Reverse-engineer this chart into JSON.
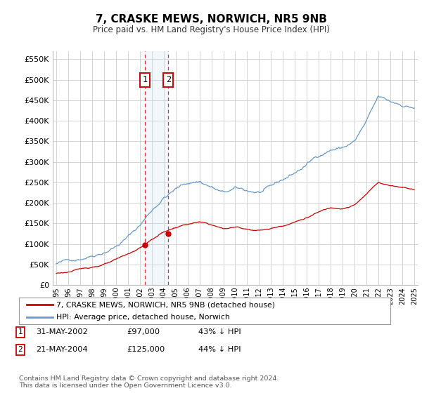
{
  "title": "7, CRASKE MEWS, NORWICH, NR5 9NB",
  "subtitle": "Price paid vs. HM Land Registry's House Price Index (HPI)",
  "ylabel_ticks": [
    0,
    50000,
    100000,
    150000,
    200000,
    250000,
    300000,
    350000,
    400000,
    450000,
    500000,
    550000
  ],
  "ylabel_labels": [
    "£0",
    "£50K",
    "£100K",
    "£150K",
    "£200K",
    "£250K",
    "£300K",
    "£350K",
    "£400K",
    "£450K",
    "£500K",
    "£550K"
  ],
  "ylim": [
    0,
    570000
  ],
  "sale1_x": 2002.42,
  "sale1_y": 97000,
  "sale2_x": 2004.39,
  "sale2_y": 125000,
  "shade_x1": 2002.0,
  "shade_x2": 2004.75,
  "legend_red": "7, CRASKE MEWS, NORWICH, NR5 9NB (detached house)",
  "legend_blue": "HPI: Average price, detached house, Norwich",
  "table_rows": [
    {
      "label": "1",
      "date": "31-MAY-2002",
      "price": "£97,000",
      "hpi": "43% ↓ HPI"
    },
    {
      "label": "2",
      "date": "21-MAY-2004",
      "price": "£125,000",
      "hpi": "44% ↓ HPI"
    }
  ],
  "footnote1": "Contains HM Land Registry data © Crown copyright and database right 2024.",
  "footnote2": "This data is licensed under the Open Government Licence v3.0.",
  "red_color": "#cc0000",
  "blue_color": "#6699cc",
  "vline_color": "#dd3333",
  "shade_color": "#cce0f5",
  "box_facecolor": "#ffffff",
  "box_edgecolor": "#cc0000",
  "grid_color": "#cccccc",
  "bg_color": "#ffffff",
  "xmin": 1994.7,
  "xmax": 2025.3
}
